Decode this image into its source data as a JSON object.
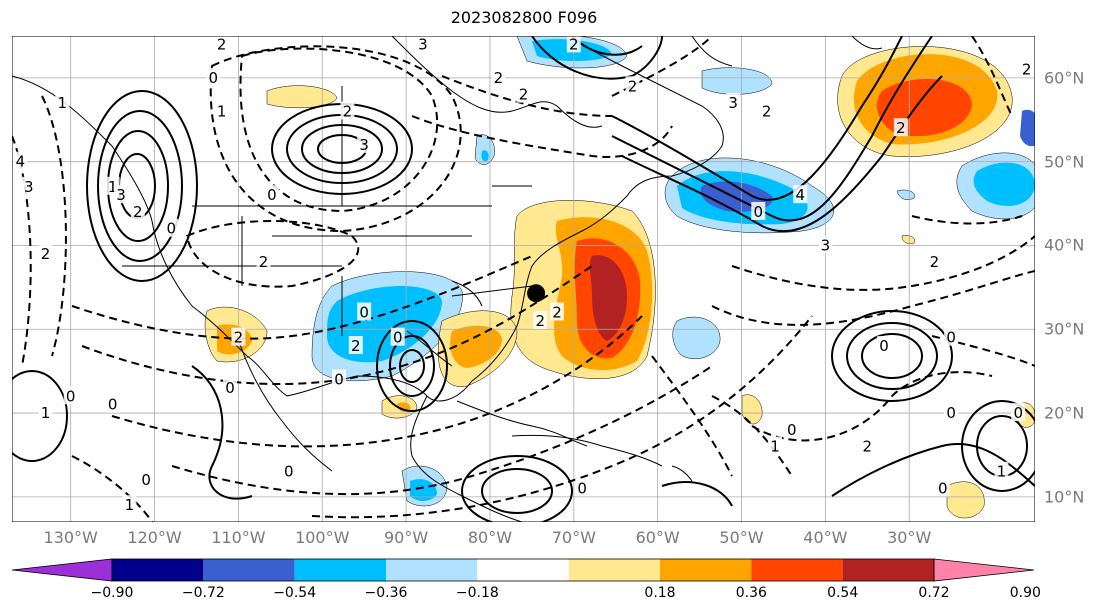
{
  "title": "2023082800 F096",
  "map": {
    "projection": "lat-lon",
    "lon_range": [
      -137,
      -15
    ],
    "lat_range": [
      7,
      65
    ],
    "grid": true,
    "contour_lines": "black solid positive, dashed negative",
    "marker": {
      "name": "storm-center",
      "lon": -74.5,
      "lat": 34.3,
      "color": "#000000"
    }
  },
  "lon_ticks": [
    {
      "value": -130,
      "label": "130°W"
    },
    {
      "value": -120,
      "label": "120°W"
    },
    {
      "value": -110,
      "label": "110°W"
    },
    {
      "value": -100,
      "label": "100°W"
    },
    {
      "value": -90,
      "label": "90°W"
    },
    {
      "value": -80,
      "label": "80°W"
    },
    {
      "value": -70,
      "label": "70°W"
    },
    {
      "value": -60,
      "label": "60°W"
    },
    {
      "value": -50,
      "label": "50°W"
    },
    {
      "value": -40,
      "label": "40°W"
    },
    {
      "value": -30,
      "label": "30°W"
    }
  ],
  "lat_ticks": [
    {
      "value": 60,
      "label": "60°N"
    },
    {
      "value": 50,
      "label": "50°N"
    },
    {
      "value": 40,
      "label": "40°N"
    },
    {
      "value": 30,
      "label": "30°N"
    },
    {
      "value": 20,
      "label": "20°N"
    },
    {
      "value": 10,
      "label": "10°N"
    }
  ],
  "contour_labels": [
    {
      "text": "4",
      "lon": -136,
      "lat": 50
    },
    {
      "text": "3",
      "lon": -135,
      "lat": 47
    },
    {
      "text": "2",
      "lon": -133,
      "lat": 39
    },
    {
      "text": "1",
      "lon": -131,
      "lat": 57
    },
    {
      "text": "1",
      "lon": -125,
      "lat": 47
    },
    {
      "text": "3",
      "lon": -124,
      "lat": 46
    },
    {
      "text": "2",
      "lon": -122,
      "lat": 44
    },
    {
      "text": "0",
      "lon": -118,
      "lat": 42
    },
    {
      "text": "0",
      "lon": -113,
      "lat": 60
    },
    {
      "text": "2",
      "lon": -112,
      "lat": 64
    },
    {
      "text": "1",
      "lon": -112,
      "lat": 56
    },
    {
      "text": "0",
      "lon": -106,
      "lat": 46
    },
    {
      "text": "3",
      "lon": -95,
      "lat": 52
    },
    {
      "text": "2",
      "lon": -97,
      "lat": 56
    },
    {
      "text": "2",
      "lon": -107,
      "lat": 38
    },
    {
      "text": "3",
      "lon": -88,
      "lat": 64
    },
    {
      "text": "2",
      "lon": -79,
      "lat": 60
    },
    {
      "text": "2",
      "lon": -76,
      "lat": 58
    },
    {
      "text": "2",
      "lon": -70,
      "lat": 64
    },
    {
      "text": "2",
      "lon": -63,
      "lat": 59
    },
    {
      "text": "3",
      "lon": -51,
      "lat": 57
    },
    {
      "text": "2",
      "lon": -47,
      "lat": 56
    },
    {
      "text": "2",
      "lon": -31,
      "lat": 54
    },
    {
      "text": "2",
      "lon": -16,
      "lat": 61
    },
    {
      "text": "4",
      "lon": -43,
      "lat": 46
    },
    {
      "text": "3",
      "lon": -40,
      "lat": 40
    },
    {
      "text": "2",
      "lon": -27,
      "lat": 38
    },
    {
      "text": "0",
      "lon": -48,
      "lat": 44
    },
    {
      "text": "2",
      "lon": -110,
      "lat": 29
    },
    {
      "text": "0",
      "lon": -130,
      "lat": 22
    },
    {
      "text": "1",
      "lon": -133,
      "lat": 20
    },
    {
      "text": "0",
      "lon": -125,
      "lat": 21
    },
    {
      "text": "0",
      "lon": -111,
      "lat": 23
    },
    {
      "text": "0",
      "lon": -98,
      "lat": 24
    },
    {
      "text": "2",
      "lon": -96,
      "lat": 28
    },
    {
      "text": "0",
      "lon": -91,
      "lat": 29
    },
    {
      "text": "0",
      "lon": -95,
      "lat": 32
    },
    {
      "text": "2",
      "lon": -74,
      "lat": 31
    },
    {
      "text": "2",
      "lon": -72,
      "lat": 32
    },
    {
      "text": "0",
      "lon": -104,
      "lat": 13
    },
    {
      "text": "0",
      "lon": -121,
      "lat": 12
    },
    {
      "text": "1",
      "lon": -123,
      "lat": 9
    },
    {
      "text": "0",
      "lon": -44,
      "lat": 18
    },
    {
      "text": "1",
      "lon": -46,
      "lat": 16
    },
    {
      "text": "2",
      "lon": -35,
      "lat": 16
    },
    {
      "text": "0",
      "lon": -33,
      "lat": 28
    },
    {
      "text": "0",
      "lon": -25,
      "lat": 20
    },
    {
      "text": "1",
      "lon": -19,
      "lat": 13
    },
    {
      "text": "0",
      "lon": -26,
      "lat": 11
    },
    {
      "text": "0",
      "lon": -69,
      "lat": 11
    },
    {
      "text": "0",
      "lon": -25,
      "lat": 29
    },
    {
      "text": "0",
      "lon": -17,
      "lat": 20
    }
  ],
  "colorbar": {
    "ticks": [
      {
        "value": -0.9,
        "label": "−0.90"
      },
      {
        "value": -0.72,
        "label": "−0.72"
      },
      {
        "value": -0.54,
        "label": "−0.54"
      },
      {
        "value": -0.36,
        "label": "−0.36"
      },
      {
        "value": -0.18,
        "label": "−0.18"
      },
      {
        "value": 0.18,
        "label": "0.18"
      },
      {
        "value": 0.36,
        "label": "0.36"
      },
      {
        "value": 0.54,
        "label": "0.54"
      },
      {
        "value": 0.72,
        "label": "0.72"
      },
      {
        "value": 0.9,
        "label": "0.90"
      }
    ],
    "colors": [
      "#9b30d9",
      "#00008b",
      "#3a5fd0",
      "#00bfff",
      "#b0e2ff",
      "#ffffff",
      "#ffe890",
      "#ffa500",
      "#ff4500",
      "#b22222",
      "#ff82ab"
    ]
  }
}
